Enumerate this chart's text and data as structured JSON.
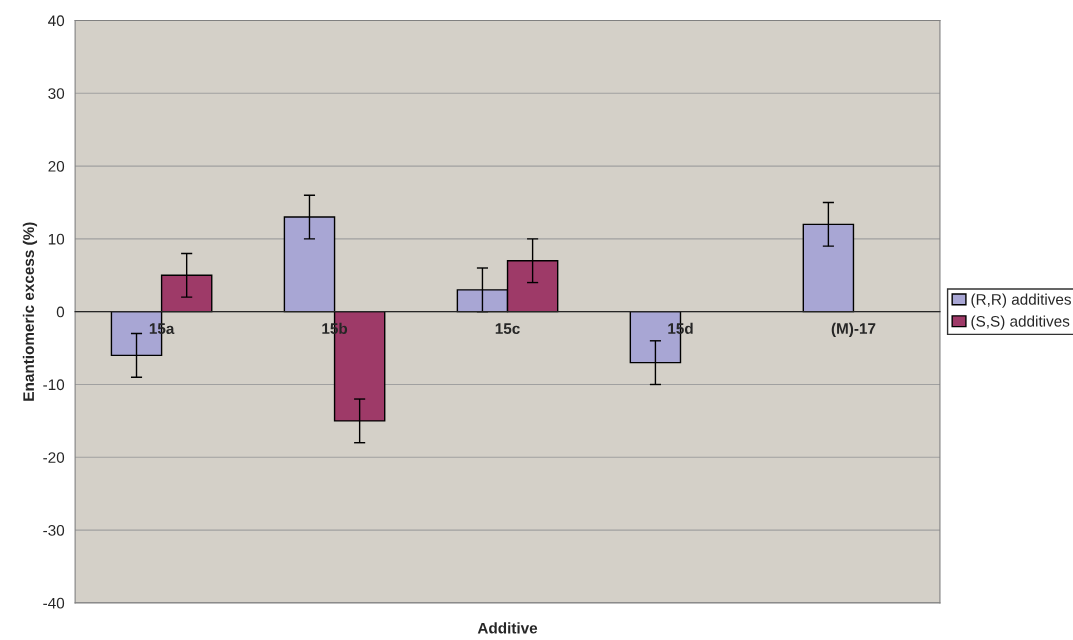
{
  "chart_data": {
    "type": "bar",
    "xlabel": "Additive",
    "ylabel": "Enantiomeric excess (%)",
    "categories": [
      "15a",
      "15b",
      "15c",
      "15d",
      "(M)-17"
    ],
    "series": [
      {
        "name": "(R,R) additives",
        "color": "#a8a6d4",
        "values": [
          -6,
          13,
          3,
          -7,
          12
        ],
        "errors": [
          3,
          3,
          3,
          3,
          3
        ]
      },
      {
        "name": "(S,S) additives",
        "color": "#9e3a68",
        "values": [
          5,
          -15,
          7,
          null,
          null
        ],
        "errors": [
          3,
          3,
          3,
          null,
          null
        ]
      }
    ],
    "ylim": [
      -40,
      40
    ],
    "yticks": [
      -40,
      -30,
      -20,
      -10,
      0,
      10,
      20,
      30,
      40
    ],
    "grid": "y",
    "legend": "right"
  }
}
